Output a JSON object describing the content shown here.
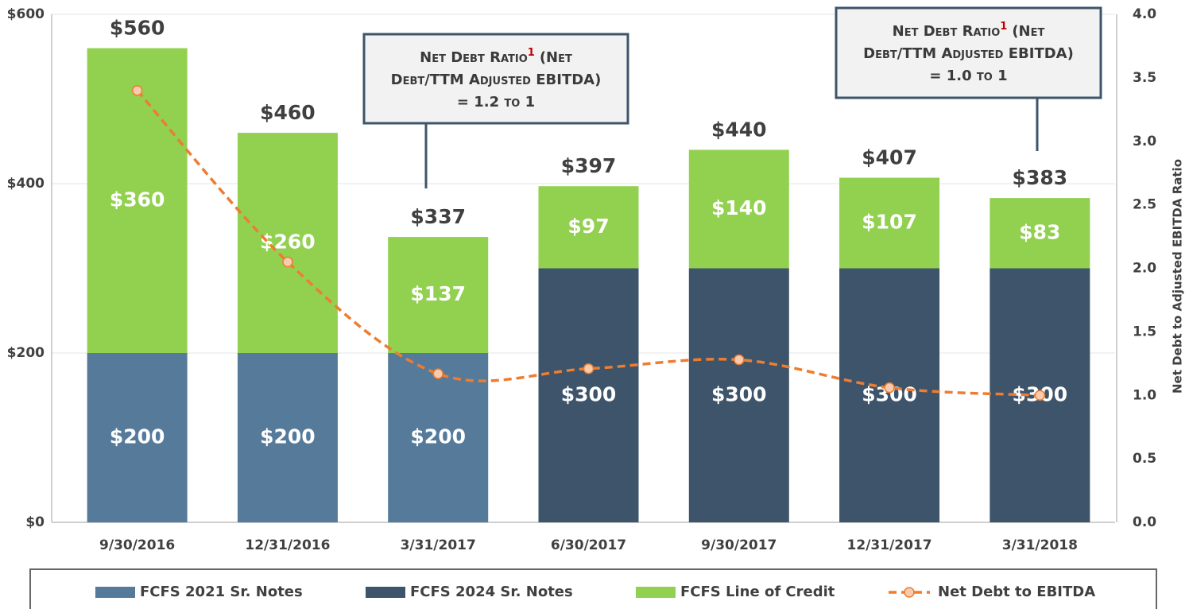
{
  "chart_data": {
    "type": "bar",
    "stacked": true,
    "categories": [
      "9/30/2016",
      "12/31/2016",
      "3/31/2017",
      "6/30/2017",
      "9/30/2017",
      "12/31/2017",
      "3/31/2018"
    ],
    "series": [
      {
        "name": "FCFS 2021 Sr. Notes",
        "color": "#557a9a",
        "values": [
          200,
          200,
          200,
          null,
          null,
          null,
          null
        ],
        "value_labels": [
          "$200",
          "$200",
          "$200",
          null,
          null,
          null,
          null
        ]
      },
      {
        "name": "FCFS 2024 Sr. Notes",
        "color": "#3d546a",
        "values": [
          null,
          null,
          null,
          300,
          300,
          300,
          300
        ],
        "value_labels": [
          null,
          null,
          null,
          "$300",
          "$300",
          "$300",
          "$300"
        ]
      },
      {
        "name": "FCFS Line of Credit",
        "color": "#92d050",
        "values": [
          360,
          260,
          137,
          97,
          140,
          107,
          83
        ],
        "value_labels": [
          "$360",
          "$260",
          "$137",
          "$97",
          "$140",
          "$107",
          "$83"
        ]
      },
      {
        "name": "Net Debt to EBITDA",
        "type": "line",
        "axis": "y2",
        "color": "#ed7d31",
        "values": [
          3.4,
          2.05,
          1.17,
          1.21,
          1.28,
          1.06,
          1.0
        ]
      }
    ],
    "totals": {
      "values": [
        560,
        460,
        337,
        397,
        440,
        407,
        383
      ],
      "value_labels": [
        "$560",
        "$460",
        "$337",
        "$397",
        "$440",
        "$407",
        "$383"
      ]
    },
    "ylim": [
      0,
      600
    ],
    "yticks": [
      {
        "value": 0,
        "label": "$0"
      },
      {
        "value": 200,
        "label": "$200"
      },
      {
        "value": 400,
        "label": "$400"
      },
      {
        "value": 600,
        "label": "$600"
      }
    ],
    "y2lim": [
      0,
      4
    ],
    "y2ticks": [
      {
        "value": 0,
        "label": "0.0"
      },
      0.5,
      {
        "value": 1,
        "label": "1.0"
      },
      1.5,
      {
        "value": 2,
        "label": "2.0"
      },
      2.5,
      {
        "value": 3,
        "label": "3.0"
      },
      3.5,
      {
        "value": 4,
        "label": "4.0"
      }
    ],
    "y2label": "Net Debt to Adjusted EBITDA Ratio",
    "grid": true,
    "legend": "bottom",
    "annotations": [
      {
        "line1": "Net Debt Ratio",
        "sup": "1",
        "line1b": "(Net",
        "line2": "Debt/TTM Adjusted EBITDA)",
        "line3": "= 1.2 to 1"
      },
      {
        "line1": "Net Debt Ratio",
        "sup": "1",
        "line1b": "(Net",
        "line2": "Debt/TTM Adjusted EBITDA)",
        "line3": "= 1.0 to 1"
      }
    ]
  }
}
